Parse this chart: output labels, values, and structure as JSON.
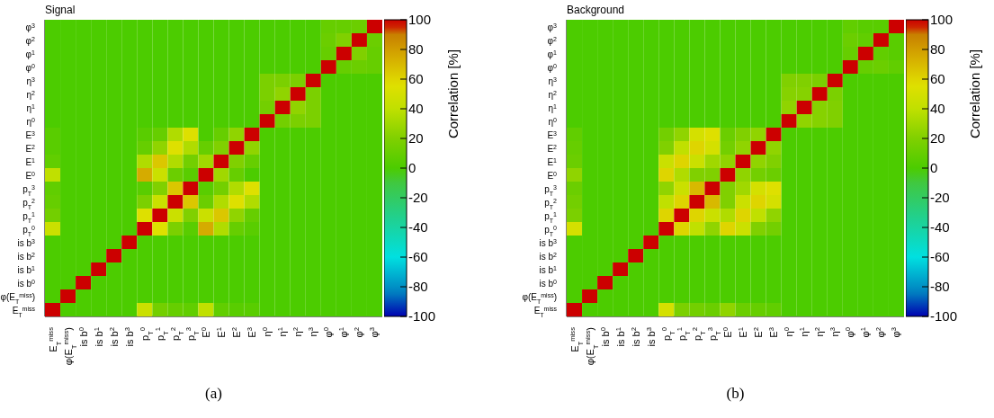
{
  "chart_data": [
    {
      "type": "heatmap",
      "title": "Signal",
      "clabel": "Correlation [%]",
      "clim": [
        -100,
        100
      ],
      "cticks": [
        -100,
        -80,
        -60,
        -40,
        -20,
        0,
        20,
        40,
        60,
        80,
        100
      ],
      "annotations": [
        "(a)"
      ],
      "categories": [
        "E$_{T}$$^{miss}$",
        "φ(E$_{T}$$^{miss}$)",
        "is b$^{0}$",
        "is b$^{1}$",
        "is b$^{2}$",
        "is b$^{3}$",
        "p$_{T}$$^{0}$",
        "p$_{T}$$^{1}$",
        "p$_{T}$$^{2}$",
        "p$_{T}$$^{3}$",
        "E$^{0}$",
        "E$^{1}$",
        "E$^{2}$",
        "E$^{3}$",
        "η$^{0}$",
        "η$^{1}$",
        "η$^{2}$",
        "η$^{3}$",
        "φ$^{0}$",
        "φ$^{1}$",
        "φ$^{2}$",
        "φ$^{3}$"
      ],
      "y_categories": [
        "φ$^{3}$",
        "φ$^{2}$",
        "φ$^{1}$",
        "φ$^{0}$",
        "η$^{3}$",
        "η$^{2}$",
        "η$^{1}$",
        "η$^{0}$",
        "E$^{3}$",
        "E$^{2}$",
        "E$^{1}$",
        "E$^{0}$",
        "p$_{T}$$^{3}$",
        "p$_{T}$$^{2}$",
        "p$_{T}$$^{1}$",
        "p$_{T}$$^{0}$",
        "is b$^{3}$",
        "is b$^{2}$",
        "is b$^{1}$",
        "is b$^{0}$",
        "φ(E$_{T}$$^{miss}$)",
        "E$_{T}$$^{miss}$"
      ],
      "cells": [
        [
          0,
          0,
          0,
          0,
          0,
          0,
          0,
          0,
          0,
          0,
          0,
          0,
          0,
          0,
          0,
          0,
          0,
          0,
          10,
          10,
          12,
          100
        ],
        [
          0,
          0,
          0,
          0,
          0,
          0,
          0,
          0,
          0,
          0,
          0,
          0,
          0,
          0,
          0,
          0,
          0,
          0,
          12,
          20,
          100,
          12
        ],
        [
          0,
          0,
          0,
          0,
          0,
          0,
          0,
          0,
          0,
          0,
          0,
          0,
          0,
          0,
          0,
          0,
          0,
          0,
          10,
          100,
          20,
          10
        ],
        [
          0,
          0,
          0,
          0,
          0,
          0,
          0,
          0,
          0,
          0,
          0,
          0,
          0,
          0,
          0,
          0,
          0,
          0,
          100,
          10,
          12,
          10
        ],
        [
          0,
          0,
          0,
          0,
          0,
          0,
          0,
          0,
          0,
          0,
          0,
          0,
          0,
          0,
          18,
          18,
          18,
          100,
          0,
          0,
          0,
          0
        ],
        [
          0,
          0,
          0,
          0,
          0,
          0,
          0,
          0,
          0,
          0,
          0,
          0,
          0,
          0,
          18,
          25,
          100,
          18,
          0,
          0,
          0,
          0
        ],
        [
          0,
          0,
          0,
          0,
          0,
          0,
          0,
          0,
          0,
          0,
          0,
          0,
          0,
          0,
          15,
          100,
          25,
          18,
          0,
          0,
          0,
          0
        ],
        [
          0,
          0,
          0,
          0,
          0,
          0,
          0,
          0,
          0,
          0,
          0,
          0,
          0,
          0,
          100,
          15,
          18,
          18,
          0,
          0,
          0,
          0
        ],
        [
          5,
          0,
          0,
          0,
          0,
          0,
          5,
          10,
          35,
          55,
          0,
          10,
          25,
          100,
          0,
          0,
          0,
          0,
          0,
          0,
          0,
          0
        ],
        [
          5,
          0,
          0,
          0,
          0,
          0,
          10,
          25,
          55,
          35,
          10,
          20,
          100,
          25,
          0,
          0,
          0,
          0,
          0,
          0,
          0,
          0
        ],
        [
          8,
          0,
          0,
          0,
          0,
          0,
          35,
          65,
          35,
          15,
          30,
          100,
          20,
          10,
          0,
          0,
          0,
          0,
          0,
          0,
          0,
          0
        ],
        [
          40,
          0,
          0,
          0,
          0,
          0,
          75,
          45,
          12,
          5,
          100,
          30,
          10,
          0,
          0,
          0,
          0,
          0,
          0,
          0,
          0,
          0
        ],
        [
          8,
          0,
          0,
          0,
          0,
          0,
          5,
          20,
          65,
          100,
          5,
          15,
          35,
          55,
          0,
          0,
          0,
          0,
          0,
          0,
          0,
          0
        ],
        [
          10,
          0,
          0,
          0,
          0,
          0,
          18,
          45,
          100,
          65,
          12,
          35,
          55,
          35,
          0,
          0,
          0,
          0,
          0,
          0,
          0,
          0
        ],
        [
          15,
          0,
          0,
          0,
          0,
          0,
          55,
          100,
          45,
          20,
          45,
          65,
          25,
          10,
          0,
          0,
          0,
          0,
          0,
          0,
          0,
          0
        ],
        [
          45,
          0,
          0,
          0,
          0,
          0,
          100,
          55,
          18,
          5,
          75,
          35,
          10,
          5,
          0,
          0,
          0,
          0,
          0,
          0,
          0,
          0
        ],
        [
          0,
          0,
          0,
          0,
          0,
          100,
          0,
          0,
          0,
          0,
          0,
          0,
          0,
          0,
          0,
          0,
          0,
          0,
          0,
          0,
          0,
          0
        ],
        [
          0,
          0,
          0,
          0,
          100,
          0,
          0,
          0,
          0,
          0,
          0,
          0,
          0,
          0,
          0,
          0,
          0,
          0,
          0,
          0,
          0,
          0
        ],
        [
          0,
          0,
          0,
          100,
          0,
          0,
          0,
          0,
          0,
          0,
          0,
          0,
          0,
          0,
          0,
          0,
          0,
          0,
          0,
          0,
          0,
          0
        ],
        [
          0,
          0,
          100,
          0,
          0,
          0,
          0,
          0,
          0,
          0,
          0,
          0,
          0,
          0,
          0,
          0,
          0,
          0,
          0,
          0,
          0,
          0
        ],
        [
          0,
          100,
          0,
          0,
          0,
          0,
          0,
          0,
          0,
          0,
          0,
          0,
          0,
          0,
          0,
          0,
          0,
          0,
          0,
          0,
          0,
          0
        ],
        [
          100,
          0,
          0,
          0,
          0,
          0,
          45,
          15,
          10,
          8,
          40,
          8,
          5,
          5,
          0,
          0,
          0,
          0,
          0,
          0,
          0,
          0
        ]
      ]
    },
    {
      "type": "heatmap",
      "title": "Background",
      "clabel": "Correlation [%]",
      "clim": [
        -100,
        100
      ],
      "cticks": [
        -100,
        -80,
        -60,
        -40,
        -20,
        0,
        20,
        40,
        60,
        80,
        100
      ],
      "annotations": [
        "(b)"
      ],
      "categories": [
        "E$_{T}$$^{miss}$",
        "φ(E$_{T}$$^{miss}$)",
        "is b$^{0}$",
        "is b$^{1}$",
        "is b$^{2}$",
        "is b$^{3}$",
        "p$_{T}$$^{0}$",
        "p$_{T}$$^{1}$",
        "p$_{T}$$^{2}$",
        "p$_{T}$$^{3}$",
        "E$^{0}$",
        "E$^{1}$",
        "E$^{2}$",
        "E$^{3}$",
        "η$^{0}$",
        "η$^{1}$",
        "η$^{2}$",
        "η$^{3}$",
        "φ$^{0}$",
        "φ$^{1}$",
        "φ$^{2}$",
        "φ$^{3}$"
      ],
      "y_categories": [
        "φ$^{3}$",
        "φ$^{2}$",
        "φ$^{1}$",
        "φ$^{0}$",
        "η$^{3}$",
        "η$^{2}$",
        "η$^{1}$",
        "η$^{0}$",
        "E$^{3}$",
        "E$^{2}$",
        "E$^{1}$",
        "E$^{0}$",
        "p$_{T}$$^{3}$",
        "p$_{T}$$^{2}$",
        "p$_{T}$$^{1}$",
        "p$_{T}$$^{0}$",
        "is b$^{3}$",
        "is b$^{2}$",
        "is b$^{1}$",
        "is b$^{0}$",
        "φ(E$_{T}$$^{miss}$)",
        "E$_{T}$$^{miss}$"
      ],
      "cells": [
        [
          0,
          0,
          0,
          0,
          0,
          0,
          0,
          0,
          0,
          0,
          0,
          0,
          0,
          0,
          0,
          0,
          0,
          0,
          8,
          5,
          5,
          100
        ],
        [
          0,
          0,
          0,
          0,
          0,
          0,
          0,
          0,
          0,
          0,
          0,
          0,
          0,
          0,
          0,
          0,
          0,
          0,
          12,
          8,
          100,
          5
        ],
        [
          0,
          0,
          0,
          0,
          0,
          0,
          0,
          0,
          0,
          0,
          0,
          0,
          0,
          0,
          0,
          0,
          0,
          0,
          10,
          100,
          8,
          5
        ],
        [
          0,
          0,
          0,
          0,
          0,
          0,
          0,
          0,
          0,
          0,
          0,
          0,
          0,
          0,
          0,
          0,
          0,
          0,
          100,
          10,
          12,
          8
        ],
        [
          0,
          0,
          0,
          0,
          0,
          0,
          0,
          0,
          0,
          0,
          0,
          0,
          0,
          0,
          20,
          20,
          18,
          100,
          0,
          0,
          0,
          0
        ],
        [
          0,
          0,
          0,
          0,
          0,
          0,
          0,
          0,
          0,
          0,
          0,
          0,
          0,
          0,
          22,
          22,
          100,
          18,
          0,
          0,
          0,
          0
        ],
        [
          0,
          0,
          0,
          0,
          0,
          0,
          0,
          0,
          0,
          0,
          0,
          0,
          0,
          0,
          25,
          100,
          22,
          20,
          0,
          0,
          0,
          0
        ],
        [
          0,
          0,
          0,
          0,
          0,
          0,
          0,
          0,
          0,
          0,
          0,
          0,
          0,
          0,
          100,
          25,
          22,
          20,
          0,
          0,
          0,
          0
        ],
        [
          8,
          0,
          0,
          0,
          0,
          0,
          15,
          25,
          50,
          55,
          12,
          20,
          25,
          100,
          0,
          0,
          0,
          0,
          0,
          0,
          0,
          0
        ],
        [
          10,
          0,
          0,
          0,
          0,
          0,
          20,
          40,
          60,
          50,
          15,
          25,
          100,
          25,
          0,
          0,
          0,
          0,
          0,
          0,
          0,
          0
        ],
        [
          12,
          0,
          0,
          0,
          0,
          0,
          45,
          60,
          45,
          30,
          25,
          100,
          25,
          20,
          0,
          0,
          0,
          0,
          0,
          0,
          0,
          0
        ],
        [
          25,
          0,
          0,
          0,
          0,
          0,
          60,
          35,
          20,
          20,
          100,
          25,
          15,
          12,
          0,
          0,
          0,
          0,
          0,
          0,
          0,
          0
        ],
        [
          12,
          0,
          0,
          0,
          0,
          0,
          25,
          45,
          70,
          100,
          20,
          30,
          50,
          55,
          0,
          0,
          0,
          0,
          0,
          0,
          0,
          0
        ],
        [
          15,
          0,
          0,
          0,
          0,
          0,
          40,
          60,
          100,
          70,
          20,
          45,
          60,
          50,
          0,
          0,
          0,
          0,
          0,
          0,
          0,
          0
        ],
        [
          18,
          0,
          0,
          0,
          0,
          0,
          60,
          100,
          60,
          45,
          35,
          60,
          40,
          25,
          0,
          0,
          0,
          0,
          0,
          0,
          0,
          0
        ],
        [
          50,
          0,
          0,
          0,
          0,
          0,
          100,
          60,
          40,
          25,
          60,
          45,
          20,
          15,
          0,
          0,
          0,
          0,
          0,
          0,
          0,
          0
        ],
        [
          0,
          0,
          0,
          0,
          0,
          100,
          0,
          0,
          0,
          0,
          0,
          0,
          0,
          0,
          0,
          0,
          0,
          0,
          0,
          0,
          0,
          0
        ],
        [
          0,
          0,
          0,
          0,
          100,
          0,
          0,
          0,
          0,
          0,
          0,
          0,
          0,
          0,
          0,
          0,
          0,
          0,
          0,
          0,
          0,
          0
        ],
        [
          0,
          0,
          0,
          100,
          0,
          0,
          0,
          0,
          0,
          0,
          0,
          0,
          0,
          0,
          0,
          0,
          0,
          0,
          0,
          0,
          0,
          0
        ],
        [
          0,
          0,
          100,
          0,
          0,
          0,
          0,
          0,
          0,
          0,
          0,
          0,
          0,
          0,
          0,
          0,
          0,
          0,
          0,
          0,
          0,
          0
        ],
        [
          0,
          100,
          0,
          0,
          0,
          0,
          0,
          0,
          0,
          0,
          0,
          0,
          0,
          0,
          0,
          0,
          0,
          0,
          0,
          0,
          0,
          0
        ],
        [
          100,
          0,
          0,
          0,
          0,
          0,
          50,
          18,
          15,
          12,
          25,
          12,
          10,
          8,
          0,
          0,
          0,
          0,
          0,
          0,
          0,
          0
        ]
      ]
    }
  ]
}
